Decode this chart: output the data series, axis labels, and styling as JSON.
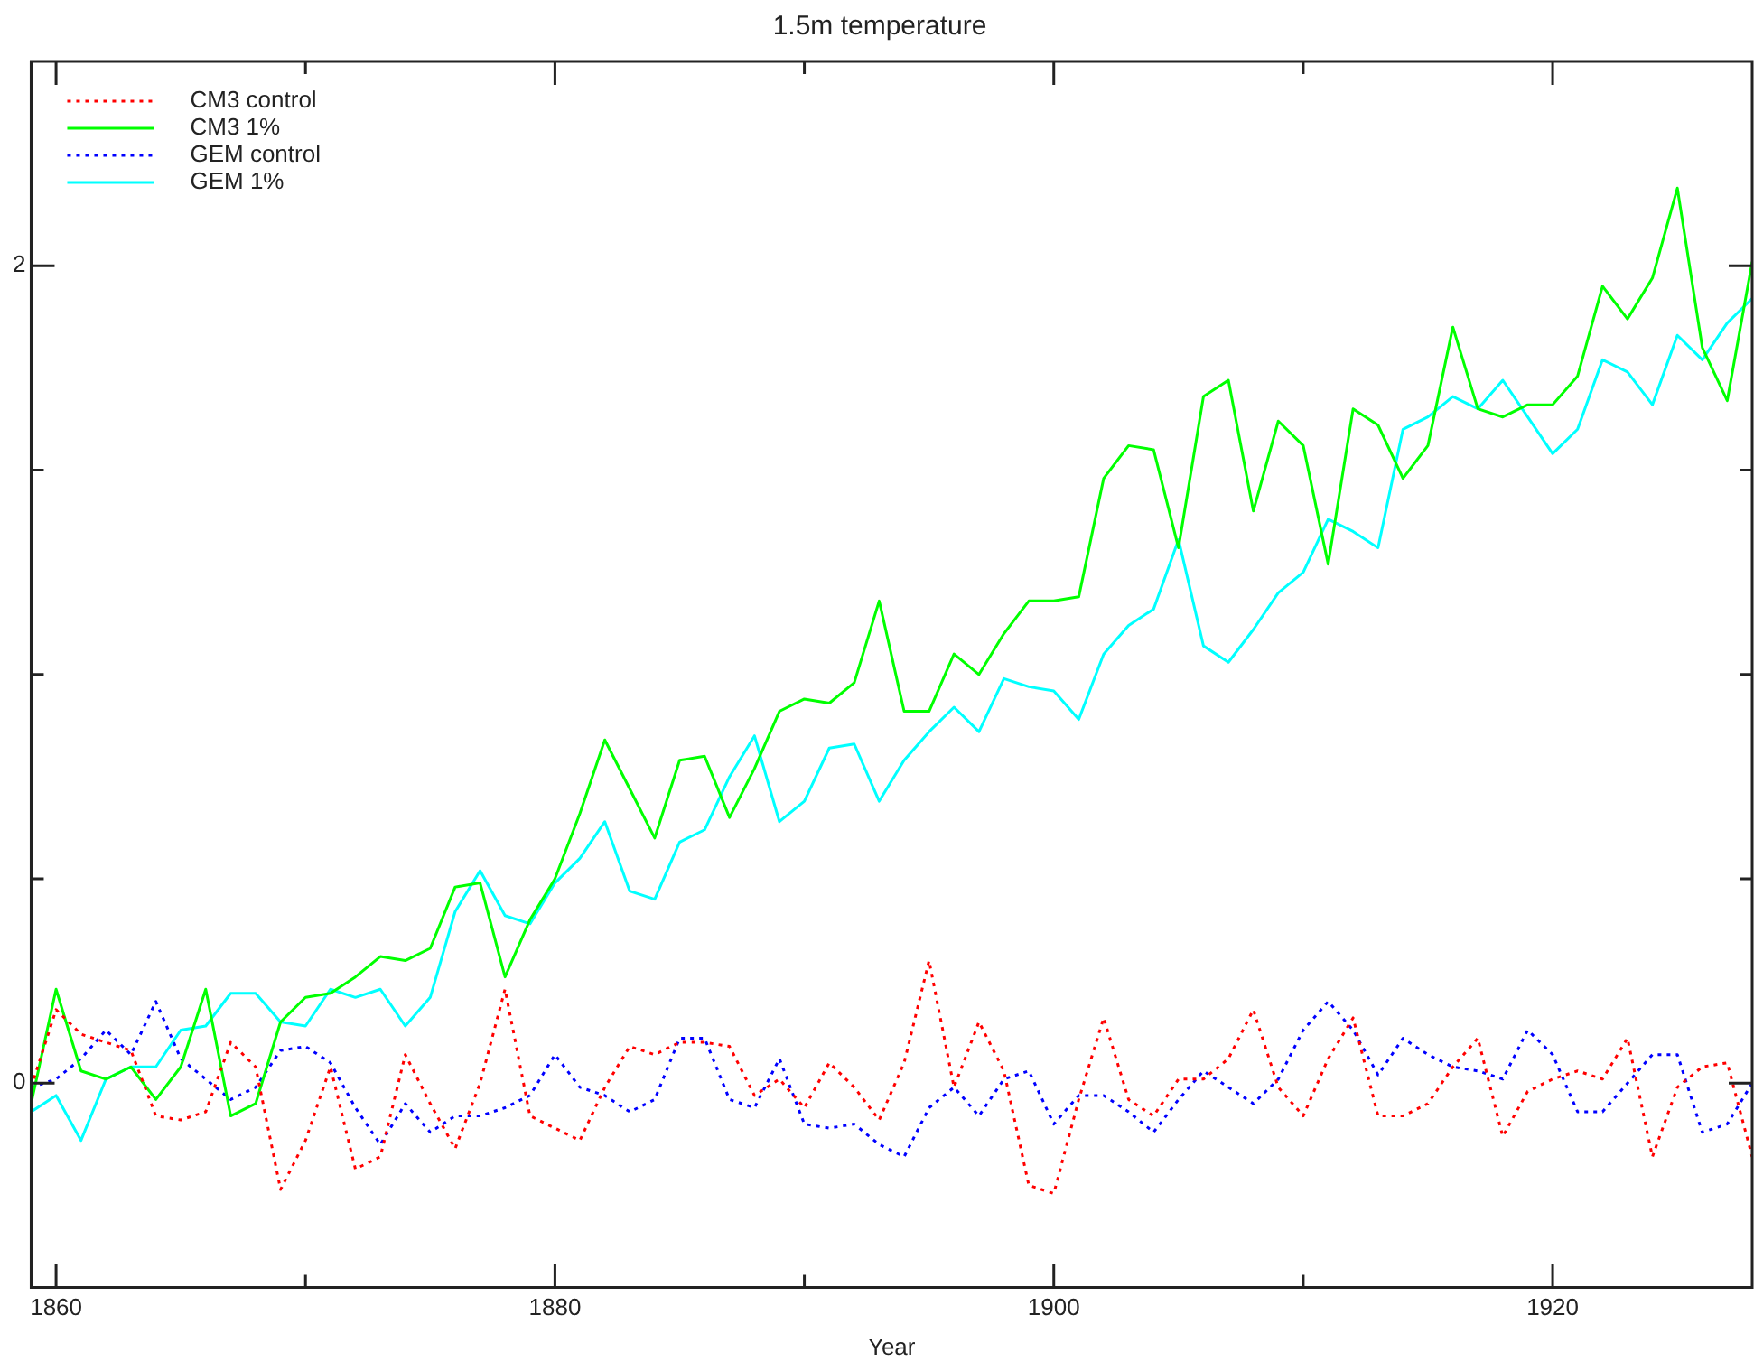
{
  "chart_data": {
    "type": "line",
    "title": "1.5m temperature",
    "xlabel": "Year",
    "x": [
      1859,
      1860,
      1861,
      1862,
      1863,
      1864,
      1865,
      1866,
      1867,
      1868,
      1869,
      1870,
      1871,
      1872,
      1873,
      1874,
      1875,
      1876,
      1877,
      1878,
      1879,
      1880,
      1881,
      1882,
      1883,
      1884,
      1885,
      1886,
      1887,
      1888,
      1889,
      1890,
      1891,
      1892,
      1893,
      1894,
      1895,
      1896,
      1897,
      1898,
      1899,
      1900,
      1901,
      1902,
      1903,
      1904,
      1905,
      1906,
      1907,
      1908,
      1909,
      1910,
      1911,
      1912,
      1913,
      1914,
      1915,
      1916,
      1917,
      1918,
      1919,
      1920,
      1921,
      1922,
      1923,
      1924,
      1925,
      1926,
      1927,
      1928
    ],
    "series": [
      {
        "name": "CM3 control",
        "color": "#ff0000",
        "line_style": "dotted",
        "values": [
          -0.01,
          0.18,
          0.12,
          0.1,
          0.08,
          -0.08,
          -0.09,
          -0.07,
          0.1,
          0.04,
          -0.26,
          -0.14,
          0.04,
          -0.21,
          -0.18,
          0.07,
          -0.05,
          -0.16,
          0,
          0.23,
          -0.08,
          -0.11,
          -0.14,
          -0.01,
          0.09,
          0.07,
          0.1,
          0.1,
          0.09,
          -0.03,
          0.01,
          -0.06,
          0.05,
          -0.01,
          -0.09,
          0.05,
          0.3,
          -0.01,
          0.15,
          0.03,
          -0.25,
          -0.27,
          -0.04,
          0.16,
          -0.04,
          -0.08,
          0.01,
          0.01,
          0.06,
          0.18,
          -0.01,
          -0.08,
          0.06,
          0.16,
          -0.08,
          -0.08,
          -0.05,
          0.04,
          0.11,
          -0.13,
          -0.02,
          0.01,
          0.03,
          0.01,
          0.11,
          -0.18,
          -0.01,
          0.04,
          0.05,
          -0.18
        ]
      },
      {
        "name": "CM3 1%",
        "color": "#00ff00",
        "line_style": "solid",
        "values": [
          -0.05,
          0.23,
          0.03,
          0.01,
          0.04,
          -0.04,
          0.04,
          0.23,
          -0.08,
          -0.05,
          0.15,
          0.21,
          0.22,
          0.26,
          0.31,
          0.3,
          0.33,
          0.48,
          0.49,
          0.26,
          0.4,
          0.5,
          0.66,
          0.84,
          0.72,
          0.6,
          0.79,
          0.8,
          0.65,
          0.77,
          0.91,
          0.94,
          0.93,
          0.98,
          1.18,
          0.91,
          0.91,
          1.05,
          1.0,
          1.1,
          1.18,
          1.18,
          1.19,
          1.48,
          1.56,
          1.55,
          1.31,
          1.68,
          1.72,
          1.4,
          1.62,
          1.56,
          1.27,
          1.65,
          1.61,
          1.48,
          1.56,
          1.85,
          1.65,
          1.63,
          1.66,
          1.66,
          1.73,
          1.95,
          1.87,
          1.97,
          2.19,
          1.8,
          1.67,
          2.01
        ]
      },
      {
        "name": "GEM control",
        "color": "#0000ff",
        "line_style": "dotted",
        "values": [
          -0.01,
          0.01,
          0.06,
          0.13,
          0.07,
          0.2,
          0.06,
          0.01,
          -0.04,
          -0.01,
          0.08,
          0.09,
          0.05,
          -0.06,
          -0.15,
          -0.05,
          -0.12,
          -0.08,
          -0.08,
          -0.06,
          -0.03,
          0.07,
          -0.01,
          -0.03,
          -0.07,
          -0.04,
          0.11,
          0.11,
          -0.04,
          -0.06,
          0.06,
          -0.1,
          -0.11,
          -0.1,
          -0.15,
          -0.18,
          -0.06,
          -0.01,
          -0.08,
          0.01,
          0.03,
          -0.1,
          -0.03,
          -0.03,
          -0.07,
          -0.12,
          -0.04,
          0.03,
          -0.01,
          -0.05,
          0.01,
          0.13,
          0.2,
          0.13,
          0.02,
          0.11,
          0.07,
          0.04,
          0.03,
          0.01,
          0.13,
          0.07,
          -0.07,
          -0.07,
          0,
          0.07,
          0.07,
          -0.12,
          -0.1,
          0
        ]
      },
      {
        "name": "GEM 1%",
        "color": "#00ffff",
        "line_style": "solid",
        "values": [
          -0.07,
          -0.03,
          -0.14,
          0.01,
          0.04,
          0.04,
          0.13,
          0.14,
          0.22,
          0.22,
          0.15,
          0.14,
          0.23,
          0.21,
          0.23,
          0.14,
          0.21,
          0.42,
          0.52,
          0.41,
          0.39,
          0.49,
          0.55,
          0.64,
          0.47,
          0.45,
          0.59,
          0.62,
          0.75,
          0.85,
          0.64,
          0.69,
          0.82,
          0.83,
          0.69,
          0.79,
          0.86,
          0.92,
          0.86,
          0.99,
          0.97,
          0.96,
          0.89,
          1.05,
          1.12,
          1.16,
          1.33,
          1.07,
          1.03,
          1.11,
          1.2,
          1.25,
          1.38,
          1.35,
          1.31,
          1.6,
          1.63,
          1.68,
          1.65,
          1.72,
          1.63,
          1.54,
          1.6,
          1.77,
          1.74,
          1.66,
          1.83,
          1.77,
          1.86,
          1.92
        ]
      }
    ],
    "xlim": [
      1859,
      1928
    ],
    "xticks": [
      1860,
      {
        "value": 1870,
        "label": null
      },
      1880,
      {
        "value": 1890,
        "label": null
      },
      1900,
      {
        "value": 1910,
        "label": null
      },
      1920
    ],
    "ylim": [
      -0.5,
      2.5
    ],
    "yticks": [
      0,
      {
        "value": 0.5,
        "label": null
      },
      {
        "value": 1,
        "label": null
      },
      {
        "value": 1.5,
        "label": null
      },
      2
    ],
    "grid": false,
    "legend": "top left",
    "marker": "none"
  }
}
